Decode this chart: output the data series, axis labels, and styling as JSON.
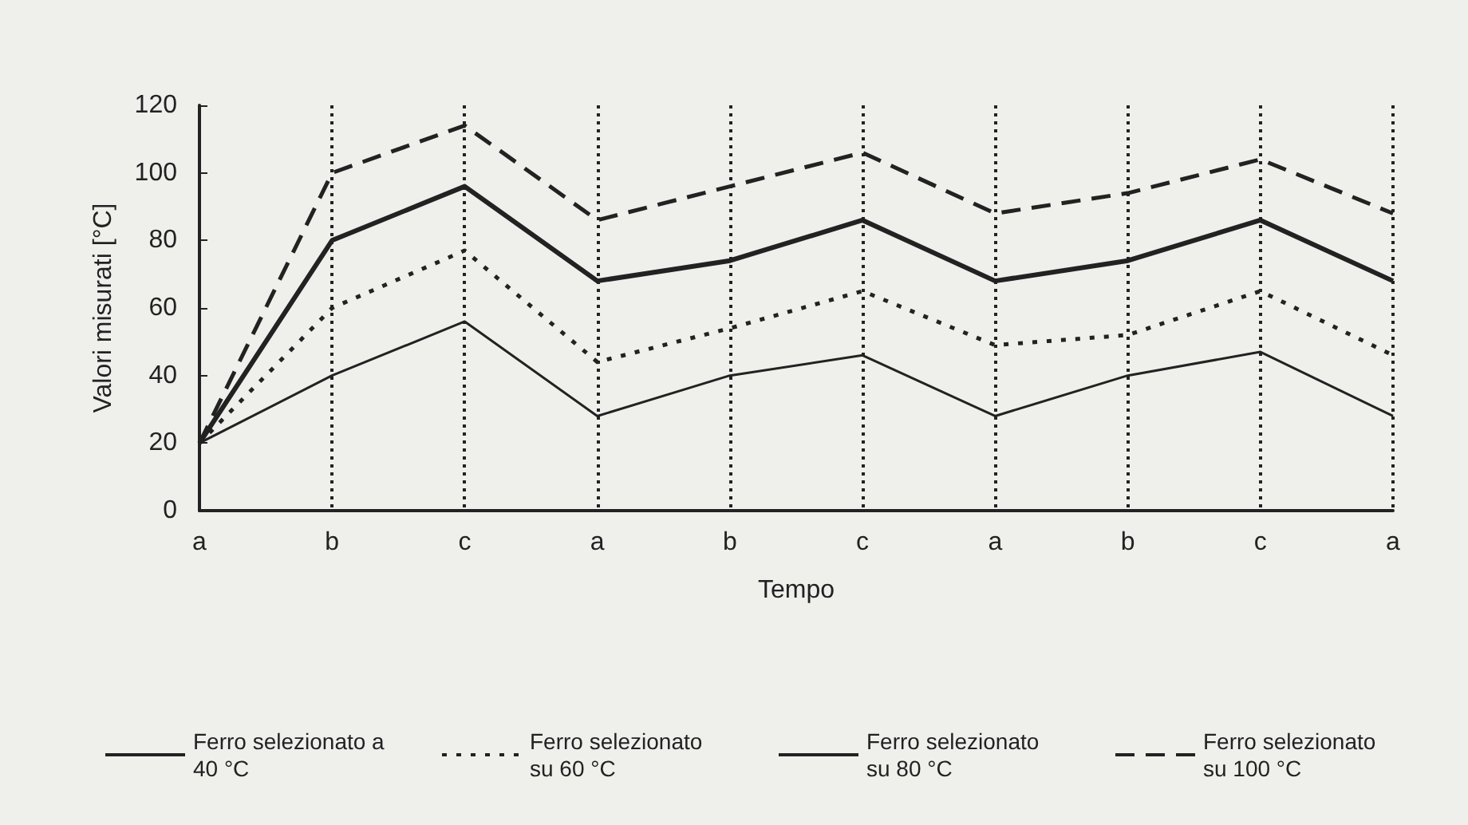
{
  "chart_data": {
    "type": "line",
    "xlabel": "Tempo",
    "ylabel": "Valori misurati [°C]",
    "categories": [
      "a",
      "b",
      "c",
      "a",
      "b",
      "c",
      "a",
      "b",
      "c",
      "a"
    ],
    "series": [
      {
        "name": "Ferro selezionato a 40 °C",
        "color": "#222222",
        "line_style": "solid",
        "values": [
          20,
          40,
          56,
          28,
          40,
          46,
          28,
          40,
          47,
          28
        ]
      },
      {
        "name": "Ferro selezionato su 60 °C",
        "color": "#222222",
        "line_style": "dotted",
        "values": [
          20,
          60,
          77,
          44,
          54,
          65,
          49,
          52,
          65,
          46
        ]
      },
      {
        "name": "Ferro selezionato su 80 °C",
        "color": "#222222",
        "line_style": "solid",
        "values": [
          20,
          80,
          96,
          68,
          74,
          86,
          68,
          74,
          86,
          68
        ]
      },
      {
        "name": "Ferro selezionato su 100 °C",
        "color": "#222222",
        "line_style": "dashed",
        "values": [
          20,
          100,
          114,
          86,
          96,
          106,
          88,
          94,
          104,
          88
        ]
      }
    ],
    "ylim": [
      0,
      120
    ],
    "yticks": [
      0,
      20,
      40,
      60,
      80,
      100,
      120
    ],
    "grid": "x",
    "legend": "bottom",
    "marker": "none"
  }
}
